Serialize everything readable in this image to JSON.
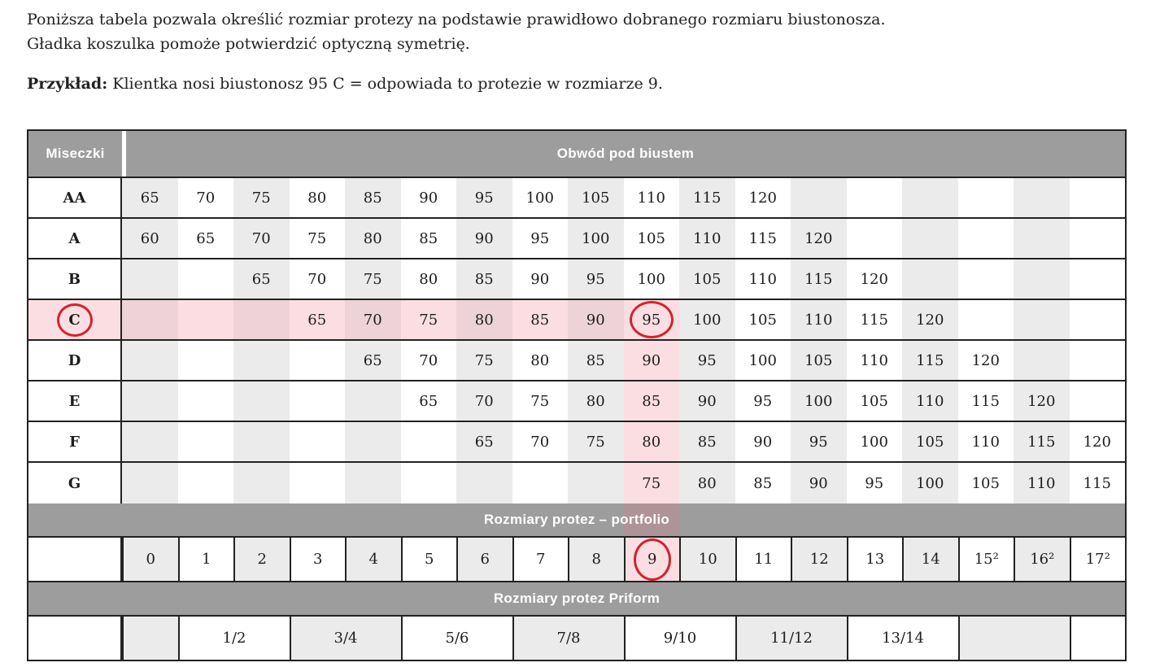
{
  "intro": {
    "line1": "Poniższa tabela pozwala określić rozmiar protezy na podstawie prawidłowo dobranego rozmiaru biustonosza.",
    "line2": "Gładka koszulka pomoże potwierdzić optyczną symetrię.",
    "example_label": "Przykład:",
    "example_text": " Klientka nosi biustonosz 95 C = odpowiada to protezie w rozmiarze 9."
  },
  "table": {
    "cup_header": "Miseczki",
    "bust_header": "Obwód pod biustem",
    "portfolio_header": "Rozmiary protez – portfolio",
    "priform_header": "Rozmiary protez Priform",
    "cup_rows": [
      {
        "label": "AA",
        "cells": [
          "65",
          "70",
          "75",
          "80",
          "85",
          "90",
          "95",
          "100",
          "105",
          "110",
          "115",
          "120",
          "",
          "",
          "",
          "",
          "",
          ""
        ]
      },
      {
        "label": "A",
        "cells": [
          "60",
          "65",
          "70",
          "75",
          "80",
          "85",
          "90",
          "95",
          "100",
          "105",
          "110",
          "115",
          "120",
          "",
          "",
          "",
          "",
          ""
        ]
      },
      {
        "label": "B",
        "cells": [
          "",
          "",
          "65",
          "70",
          "75",
          "80",
          "85",
          "90",
          "95",
          "100",
          "105",
          "110",
          "115",
          "120",
          "",
          "",
          "",
          ""
        ]
      },
      {
        "label": "C",
        "cells": [
          "",
          "",
          "",
          "65",
          "70",
          "75",
          "80",
          "85",
          "90",
          "95",
          "100",
          "105",
          "110",
          "115",
          "120",
          "",
          "",
          ""
        ]
      },
      {
        "label": "D",
        "cells": [
          "",
          "",
          "",
          "",
          "65",
          "70",
          "75",
          "80",
          "85",
          "90",
          "95",
          "100",
          "105",
          "110",
          "115",
          "120",
          "",
          ""
        ]
      },
      {
        "label": "E",
        "cells": [
          "",
          "",
          "",
          "",
          "",
          "65",
          "70",
          "75",
          "80",
          "85",
          "90",
          "95",
          "100",
          "105",
          "110",
          "115",
          "120",
          ""
        ]
      },
      {
        "label": "F",
        "cells": [
          "",
          "",
          "",
          "",
          "",
          "",
          "65",
          "70",
          "75",
          "80",
          "85",
          "90",
          "95",
          "100",
          "105",
          "110",
          "115",
          "120"
        ]
      },
      {
        "label": "G",
        "cells": [
          "",
          "",
          "",
          "",
          "",
          "",
          "",
          "",
          "",
          "75",
          "80",
          "85",
          "90",
          "95",
          "100",
          "105",
          "110",
          "115"
        ]
      }
    ],
    "size_row": [
      "0",
      "1",
      "2",
      "3",
      "4",
      "5",
      "6",
      "7",
      "8",
      "9",
      "10",
      "11",
      "12",
      "13",
      "14",
      "15²",
      "16²",
      "17²"
    ],
    "priform_segments": [
      {
        "label": "",
        "span": 1,
        "shade": "gray"
      },
      {
        "label": "1/2",
        "span": 2,
        "shade": "white"
      },
      {
        "label": "3/4",
        "span": 2,
        "shade": "gray"
      },
      {
        "label": "5/6",
        "span": 2,
        "shade": "white"
      },
      {
        "label": "7/8",
        "span": 2,
        "shade": "gray"
      },
      {
        "label": "9/10",
        "span": 2,
        "shade": "white"
      },
      {
        "label": "11/12",
        "span": 2,
        "shade": "gray"
      },
      {
        "label": "13/14",
        "span": 2,
        "shade": "white"
      },
      {
        "label": "",
        "span": 2,
        "shade": "gray"
      },
      {
        "label": "",
        "span": 1,
        "shade": "white"
      }
    ],
    "highlight": {
      "cup_row": "C",
      "row_pink_through_col": 10,
      "pink_column": 10,
      "circled_cup": "C",
      "circled_bust": "95",
      "circled_size": "9"
    },
    "colors": {
      "band_gray": "#9d9d9d",
      "column_gray": "#ebebeb",
      "pink_light": "#fbdee2",
      "pink_on_gray": "#edd3d7",
      "pink_on_band": "#ae9398",
      "circle_red": "#d2232e"
    }
  }
}
